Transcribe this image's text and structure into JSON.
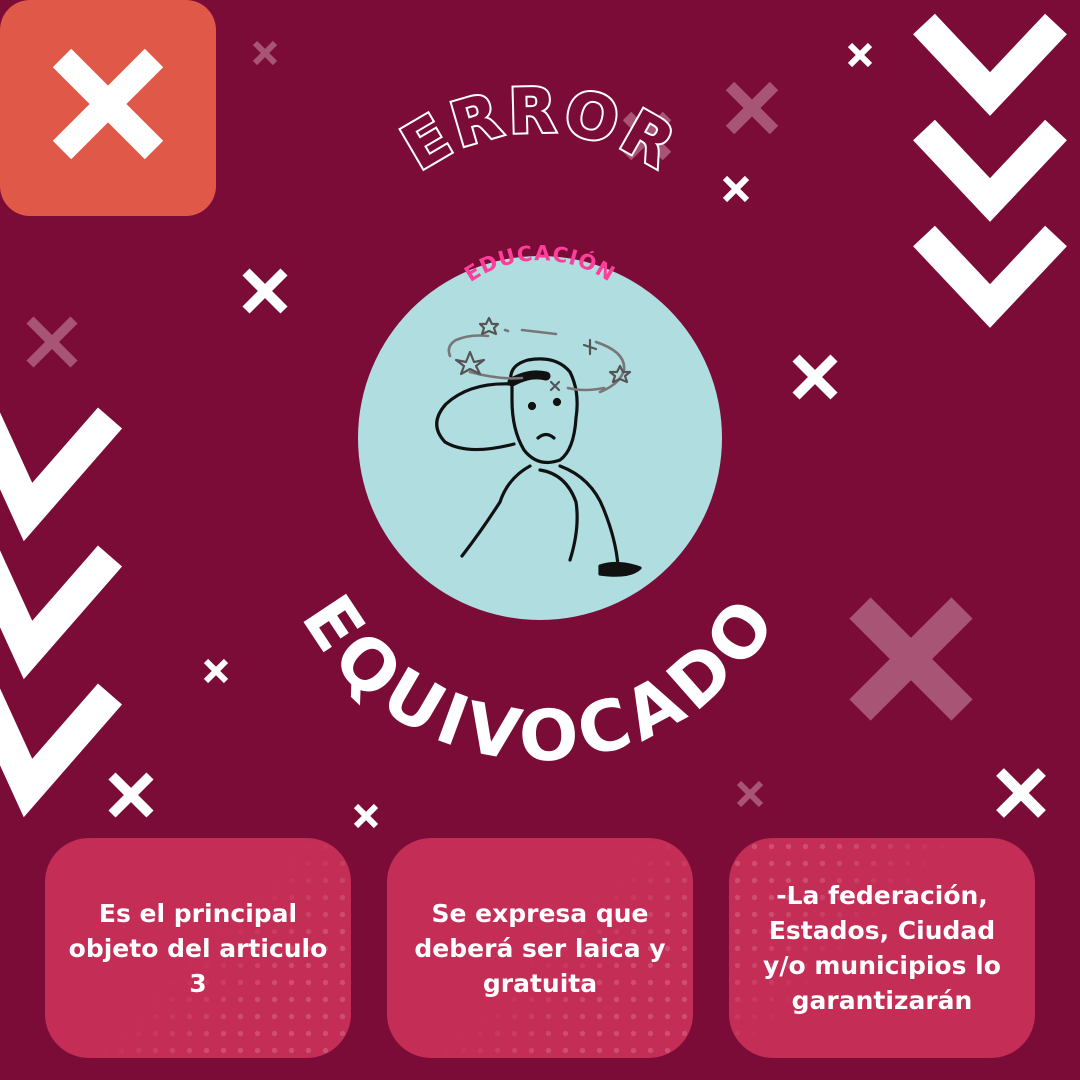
{
  "title": {
    "error_word": "ERROR",
    "topic_label": "EDUCACIÓN",
    "equivocado_word": "EQUIVOCADO"
  },
  "cards": [
    {
      "text": "Es el principal objeto del articulo 3"
    },
    {
      "text": "Se expresa que deberá ser laica y gratuita"
    },
    {
      "text": "-La federación, Estados, Ciudad y/o municipios lo garantizarán"
    }
  ],
  "colors": {
    "background": "#7a0c37",
    "card": "#c42d56",
    "close_badge": "#e05848",
    "circle": "#b0dde0",
    "accent_pink": "#ff3e9a",
    "muted_x": "#a85474"
  },
  "icons": [
    "close-icon",
    "chevron-down-icon",
    "x-mark-icon",
    "dizzy-stick-figure-illustration"
  ]
}
